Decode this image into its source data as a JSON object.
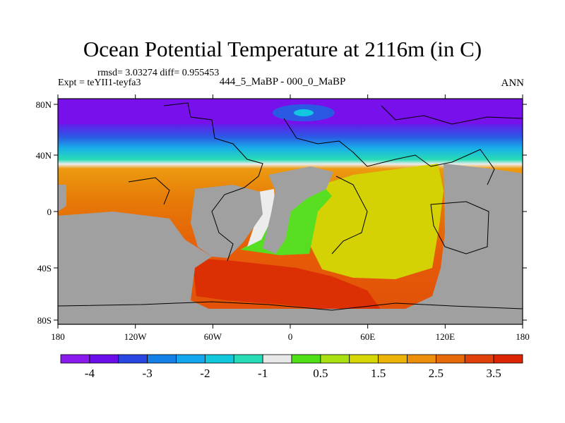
{
  "title": "Ocean Potential Temperature at 2116m (in C)",
  "stats": "rmsd= 3.03274 diff= 0.955453",
  "experiment": "Expt = teYII1-teyfa3",
  "difference_label": "444_5_MaBP - 000_0_MaBP",
  "season": "ANN",
  "map": {
    "lat_ticks": [
      "80N",
      "40N",
      "0",
      "40S",
      "80S"
    ],
    "lon_ticks": [
      "180",
      "120W",
      "60W",
      "0",
      "60E",
      "120E",
      "180"
    ],
    "land_color": "#a0a0a0",
    "missing_color": "#ffffff"
  },
  "colorbar": {
    "colors": [
      "#8a1aee",
      "#6a0dea",
      "#2846e2",
      "#1280e6",
      "#12a6ec",
      "#10c8dc",
      "#26dcb8",
      "#e8e8e8",
      "#50e018",
      "#a8e010",
      "#d6d604",
      "#ecb406",
      "#ec8e08",
      "#e66a08",
      "#e04008",
      "#dc2402"
    ],
    "labels": [
      "-4",
      "-3",
      "-2",
      "-1",
      "0.5",
      "1.5",
      "2.5",
      "3.5"
    ]
  }
}
